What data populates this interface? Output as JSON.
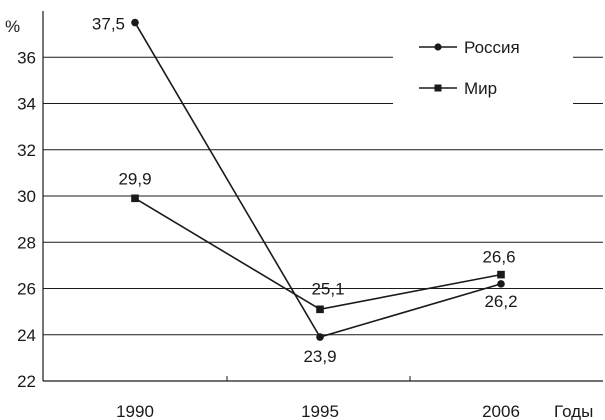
{
  "chart_data": {
    "type": "line",
    "ylabel": "%",
    "xlabel": "Годы",
    "categories": [
      "1990",
      "1995",
      "2006"
    ],
    "x": [
      1990,
      1995,
      2006
    ],
    "ylim": [
      22,
      38
    ],
    "yticks": [
      22,
      24,
      26,
      28,
      30,
      32,
      34,
      36
    ],
    "grid": "horizontal",
    "legend_position": "top-right",
    "series": [
      {
        "name": "Россия",
        "marker": "circle",
        "values": [
          37.5,
          23.9,
          26.2
        ],
        "labels": [
          "37,5",
          "23,9",
          "26,2"
        ]
      },
      {
        "name": "Мир",
        "marker": "square",
        "values": [
          29.9,
          25.1,
          26.6
        ],
        "labels": [
          "29,9",
          "25,1",
          "26,6"
        ]
      }
    ]
  }
}
